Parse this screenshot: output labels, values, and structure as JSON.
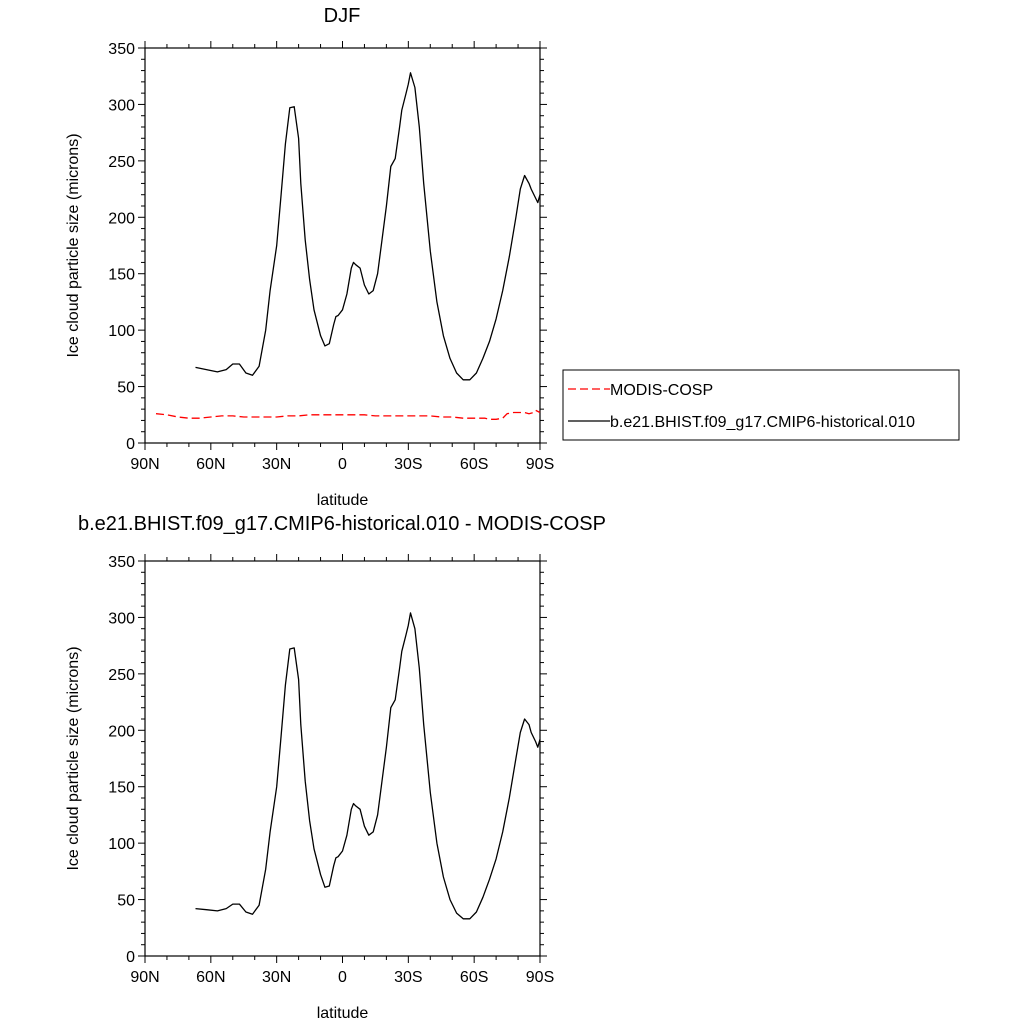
{
  "chart_data": [
    {
      "type": "line",
      "title": "DJF",
      "xlabel": "latitude",
      "ylabel": "Ice cloud particle size (microns)",
      "xlim": [
        -90,
        90
      ],
      "ylim": [
        0,
        350
      ],
      "x_ticks": [
        -90,
        -60,
        -30,
        0,
        30,
        60,
        90
      ],
      "x_tick_labels": [
        "90N",
        "60N",
        "30N",
        "0",
        "30S",
        "60S",
        "90S"
      ],
      "y_ticks": [
        0,
        50,
        100,
        150,
        200,
        250,
        300,
        350
      ],
      "y_tick_labels": [
        "0",
        "50",
        "100",
        "150",
        "200",
        "250",
        "300",
        "350"
      ],
      "grid": false,
      "legend": "right",
      "series": [
        {
          "name": "MODIS-COSP",
          "color": "#ff0000",
          "dash": "dashed",
          "x": [
            -85,
            -80,
            -75,
            -70,
            -65,
            -60,
            -55,
            -50,
            -45,
            -40,
            -35,
            -30,
            -25,
            -20,
            -15,
            -10,
            -5,
            0,
            5,
            10,
            15,
            20,
            25,
            30,
            35,
            40,
            45,
            50,
            55,
            60,
            65,
            67,
            70,
            73,
            75,
            78,
            80,
            83,
            85,
            87,
            88,
            90
          ],
          "values": [
            26,
            25,
            23,
            22,
            22,
            23,
            24,
            24,
            23,
            23,
            23,
            23,
            24,
            24,
            25,
            25,
            25,
            25,
            25,
            25,
            24,
            24,
            24,
            24,
            24,
            24,
            23,
            23,
            22,
            22,
            22,
            21,
            21,
            22,
            26,
            27,
            27,
            27,
            26,
            27,
            29,
            27
          ]
        },
        {
          "name": "b.e21.BHIST.f09_g17.CMIP6-historical.010",
          "color": "#000000",
          "dash": "solid",
          "x": [
            -67,
            -62,
            -57,
            -53,
            -50,
            -47,
            -44,
            -41,
            -38,
            -35,
            -33,
            -30,
            -28,
            -26,
            -24,
            -22,
            -20,
            -19,
            -17,
            -15,
            -13,
            -10,
            -8,
            -6,
            -4,
            -3,
            -2,
            0,
            2,
            4,
            5,
            6,
            8,
            10,
            12,
            14,
            16,
            18,
            20,
            22,
            24,
            26,
            27,
            29,
            30,
            31,
            33,
            35,
            37,
            40,
            43,
            46,
            49,
            52,
            55,
            58,
            61,
            64,
            67,
            70,
            73,
            76,
            79,
            81,
            83,
            85,
            86,
            88,
            89,
            90
          ],
          "values": [
            67,
            65,
            63,
            65,
            70,
            70,
            62,
            60,
            68,
            100,
            135,
            175,
            220,
            265,
            297,
            298,
            270,
            230,
            180,
            145,
            118,
            95,
            86,
            88,
            105,
            112,
            113,
            118,
            132,
            155,
            160,
            158,
            155,
            140,
            132,
            135,
            150,
            180,
            210,
            245,
            252,
            280,
            295,
            310,
            318,
            328,
            315,
            280,
            230,
            170,
            125,
            95,
            75,
            62,
            56,
            56,
            62,
            75,
            90,
            110,
            135,
            165,
            200,
            225,
            237,
            230,
            225,
            217,
            213,
            220
          ]
        }
      ]
    },
    {
      "type": "line",
      "title": "b.e21.BHIST.f09_g17.CMIP6-historical.010 - MODIS-COSP",
      "xlabel": "latitude",
      "ylabel": "Ice cloud particle size (microns)",
      "xlim": [
        -90,
        90
      ],
      "ylim": [
        0,
        350
      ],
      "x_ticks": [
        -90,
        -60,
        -30,
        0,
        30,
        60,
        90
      ],
      "x_tick_labels": [
        "90N",
        "60N",
        "30N",
        "0",
        "30S",
        "60S",
        "90S"
      ],
      "y_ticks": [
        0,
        50,
        100,
        150,
        200,
        250,
        300,
        350
      ],
      "y_tick_labels": [
        "0",
        "50",
        "100",
        "150",
        "200",
        "250",
        "300",
        "350"
      ],
      "grid": false,
      "series": [
        {
          "color": "#000000",
          "dash": "solid",
          "x": [
            -67,
            -62,
            -57,
            -53,
            -50,
            -47,
            -44,
            -41,
            -38,
            -35,
            -33,
            -30,
            -28,
            -26,
            -24,
            -22,
            -20,
            -19,
            -17,
            -15,
            -13,
            -10,
            -8,
            -6,
            -4,
            -3,
            -2,
            0,
            2,
            4,
            5,
            6,
            8,
            10,
            12,
            14,
            16,
            18,
            20,
            22,
            24,
            26,
            27,
            29,
            30,
            31,
            33,
            35,
            37,
            40,
            43,
            46,
            49,
            52,
            55,
            58,
            61,
            64,
            67,
            70,
            73,
            76,
            79,
            81,
            83,
            85,
            86,
            88,
            89,
            90
          ],
          "values": [
            42,
            41,
            40,
            42,
            46,
            46,
            39,
            37,
            45,
            77,
            110,
            150,
            195,
            240,
            272,
            273,
            245,
            205,
            155,
            120,
            95,
            72,
            61,
            62,
            80,
            87,
            88,
            93,
            107,
            130,
            135,
            133,
            130,
            115,
            107,
            110,
            125,
            155,
            185,
            220,
            227,
            255,
            270,
            285,
            293,
            304,
            290,
            255,
            205,
            145,
            100,
            70,
            50,
            38,
            33,
            33,
            39,
            52,
            68,
            86,
            110,
            140,
            175,
            198,
            210,
            205,
            198,
            190,
            185,
            192
          ]
        }
      ]
    }
  ]
}
